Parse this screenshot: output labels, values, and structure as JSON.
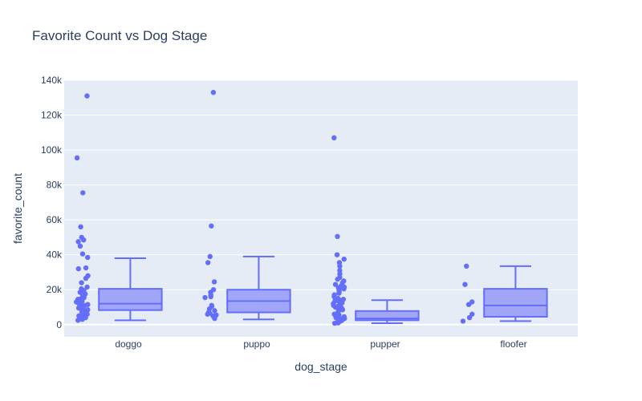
{
  "chart_data": {
    "type": "box",
    "title": "Favorite Count vs Dog Stage",
    "xlabel": "dog_stage",
    "ylabel": "favorite_count",
    "ylim": [
      -7000,
      140000
    ],
    "y_ticks": [
      0,
      20000,
      40000,
      60000,
      80000,
      100000,
      120000,
      140000
    ],
    "y_tick_labels": [
      "0",
      "20k",
      "40k",
      "60k",
      "80k",
      "100k",
      "120k",
      "140k"
    ],
    "grid": true,
    "colors": {
      "box_line": "#636efa",
      "box_fill": "#a1a6f8",
      "point": "#636efa",
      "plot_bg": "#e5ecf6",
      "grid": "#ffffff",
      "text": "#2a3f5f"
    },
    "categories": [
      "doggo",
      "puppo",
      "pupper",
      "floofer"
    ],
    "boxes": [
      {
        "category": "doggo",
        "min": 2500,
        "q1": 8300,
        "median": 12000,
        "q3": 20500,
        "max": 38000,
        "points": [
          131000,
          95500,
          75500,
          56000,
          50000,
          48500,
          47500,
          45000,
          40500,
          38500,
          32500,
          32000,
          28000,
          26500,
          24000,
          21500,
          20500,
          19500,
          18500,
          17500,
          16500,
          15500,
          15000,
          14500,
          14000,
          13500,
          13000,
          12500,
          12000,
          11500,
          11000,
          10500,
          10000,
          9500,
          9000,
          8500,
          8000,
          7500,
          7000,
          6500,
          6000,
          5500,
          5000,
          4500,
          4000,
          3500,
          3000,
          2500
        ]
      },
      {
        "category": "puppo",
        "min": 3000,
        "q1": 7000,
        "median": 13500,
        "q3": 20000,
        "max": 39000,
        "points": [
          133000,
          56500,
          39000,
          35500,
          24500,
          20000,
          18500,
          17000,
          16000,
          15500,
          11000,
          10500,
          9000,
          8000,
          7000,
          6500,
          6000,
          5500,
          5000,
          4500,
          3500
        ]
      },
      {
        "category": "pupper",
        "min": 800,
        "q1": 2500,
        "median": 3500,
        "q3": 7800,
        "max": 14000,
        "points": [
          107000,
          50500,
          40000,
          37500,
          35500,
          33500,
          31000,
          29000,
          27000,
          26000,
          25000,
          24000,
          23000,
          22500,
          22000,
          21500,
          21000,
          20500,
          20000,
          19000,
          18000,
          17000,
          16000,
          15000,
          14500,
          14000,
          13500,
          13000,
          12500,
          12000,
          11500,
          11000,
          10500,
          10000,
          9500,
          9000,
          8500,
          8000,
          7500,
          7000,
          6500,
          6000,
          5500,
          5000,
          4500,
          4000,
          3500,
          3000,
          2500,
          2000,
          1500,
          1000,
          800
        ]
      },
      {
        "category": "floofer",
        "min": 2000,
        "q1": 4500,
        "median": 11000,
        "q3": 20500,
        "max": 33500,
        "points": [
          33500,
          23000,
          13000,
          11500,
          6000,
          4000,
          2000
        ]
      }
    ]
  }
}
